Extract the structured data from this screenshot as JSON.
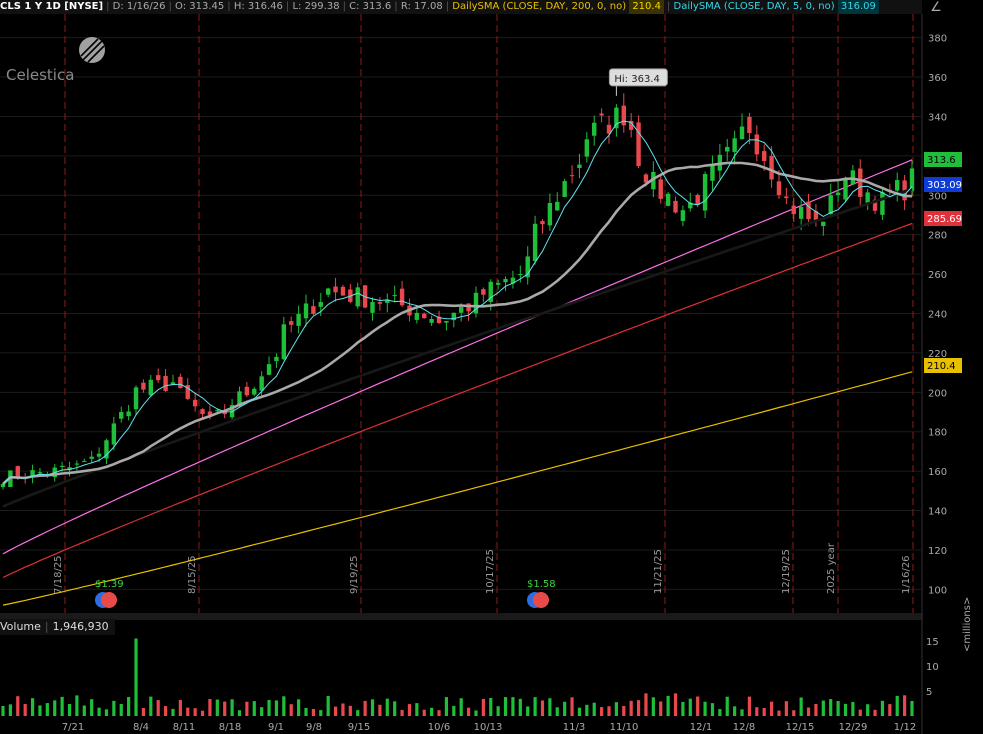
{
  "header": {
    "symbol": "CLS 1 Y 1D [NYSE]",
    "date": "D: 1/16/26",
    "open": "O: 313.45",
    "high": "H: 316.46",
    "low": "L: 299.38",
    "close": "C: 313.6",
    "range": "R: 17.08",
    "sma200_label": "DailySMA (CLOSE, DAY, 200, 0, no)",
    "sma200_value": "210.4",
    "sma5_label": "DailySMA (CLOSE, DAY, 5, 0, no)",
    "sma5_value": "316.09"
  },
  "logo": {
    "text": "Celestica"
  },
  "volume_header": {
    "label": "Volume",
    "value": "1,946,930"
  },
  "volume_unit": "<millions>",
  "colors": {
    "up": "#1fbf3a",
    "down": "#e8484e",
    "sma5": "#5fe3ee",
    "sma20": "#a9a9a9",
    "sma50": "#000000",
    "sma100": "#ff70e8",
    "sma150": "#e0303a",
    "sma200": "#e8c000",
    "grid": "#1c1c1c",
    "divider": "#8b1a1a"
  },
  "chart_data": {
    "type": "candlestick",
    "ylim": [
      88,
      392
    ],
    "y_ticks": [
      "380",
      "360",
      "340",
      "320",
      "300",
      "280",
      "260",
      "240",
      "220",
      "200",
      "180",
      "160",
      "140",
      "120",
      "100"
    ],
    "vol_ylim": [
      0,
      16
    ],
    "vol_ticks": [
      "15",
      "10",
      "5"
    ],
    "x_labels": [
      "7/21",
      "8/4",
      "8/11",
      "8/18",
      "9/1",
      "9/8",
      "9/15",
      "10/6",
      "10/13",
      "11/3",
      "11/10",
      "12/1",
      "12/8",
      "12/15",
      "12/29",
      "1/12"
    ],
    "dividers": [
      "7/18/25",
      "8/15/25",
      "9/19/25",
      "10/17/25",
      "11/21/25",
      "12/19/25",
      "2025 year",
      "1/16/26"
    ],
    "badges": [
      {
        "value": "313.6",
        "bg": "#1fbf3a",
        "fg": "#000000"
      },
      {
        "value": "303.09",
        "bg": "#0f3bd6",
        "fg": "#ffffff"
      },
      {
        "value": "285.69",
        "bg": "#e0303a",
        "fg": "#ffffff"
      },
      {
        "value": "210.4",
        "bg": "#e8c000",
        "fg": "#000000"
      }
    ],
    "hi_label": "Hi: 363.4",
    "dividends": [
      "$1.39",
      "$1.58"
    ],
    "anchor": {
      "start_close": 157,
      "peak": 363.4,
      "end_close": 313.6
    },
    "sma_end": {
      "sma5": 316.09,
      "sma20": 306,
      "sma50": 303.09,
      "sma100": 318,
      "sma150": 285.69,
      "sma200": 210.4
    }
  }
}
